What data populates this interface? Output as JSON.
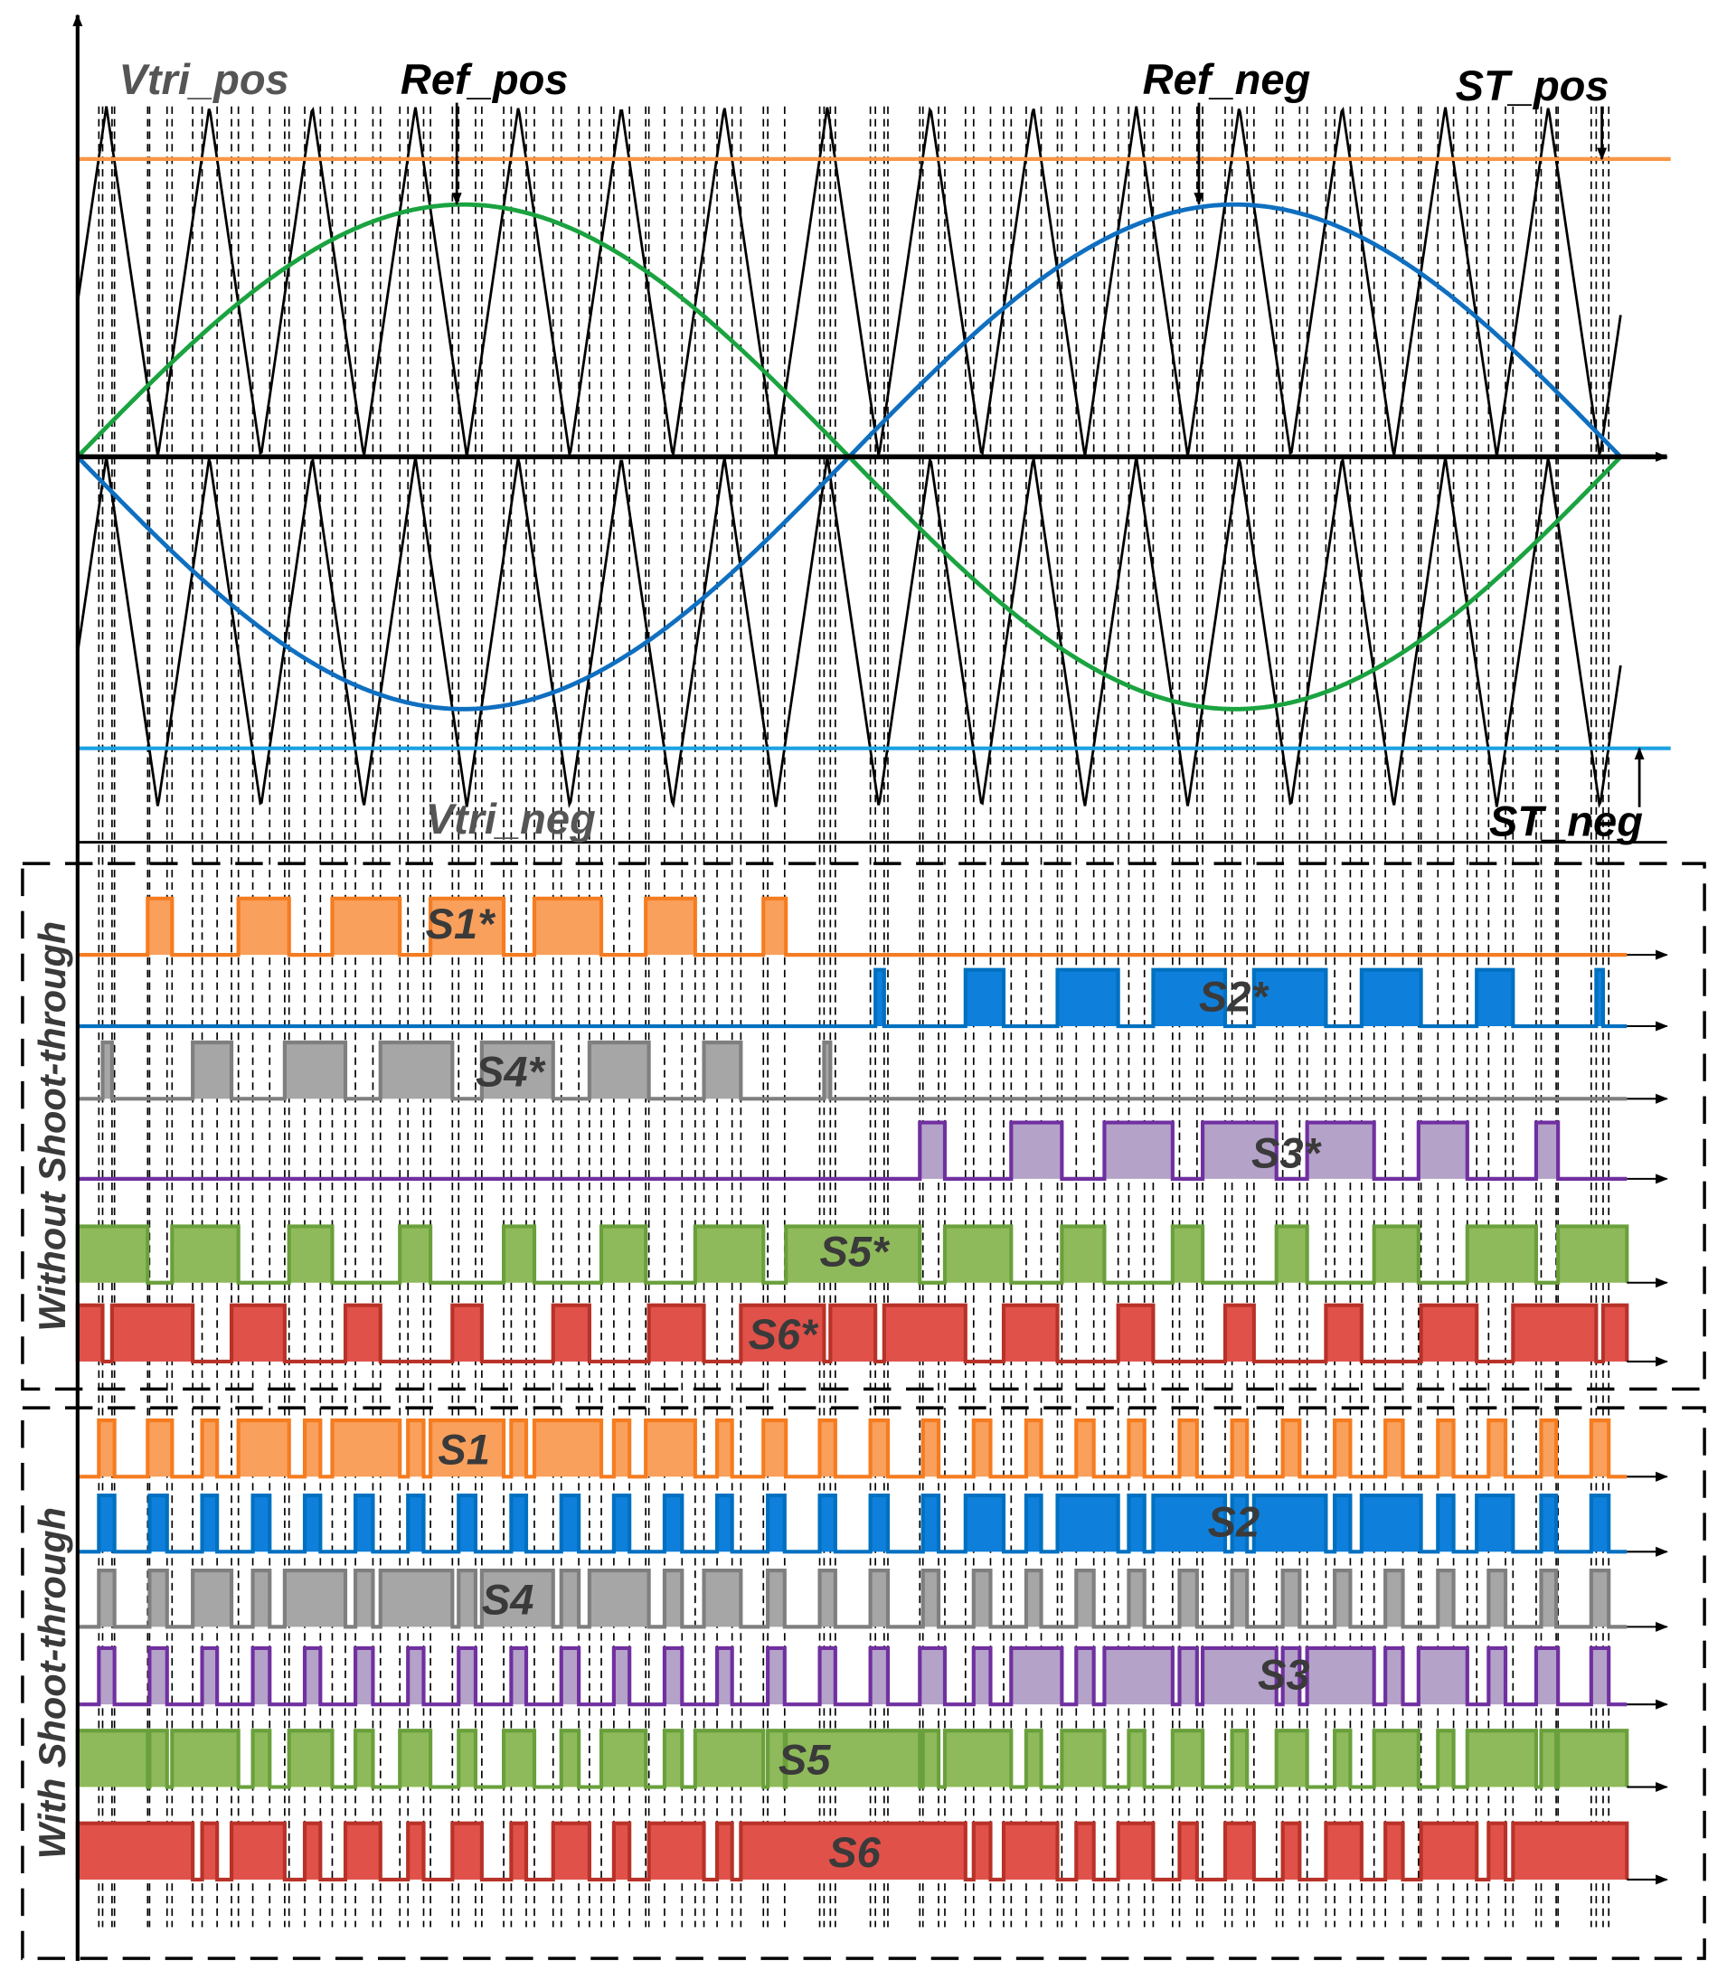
{
  "labels": {
    "vtri_pos": "Vtri_pos",
    "ref_pos": "Ref_pos",
    "ref_neg": "Ref_neg",
    "st_pos": "ST_pos",
    "vtri_neg": "Vtri_neg",
    "st_neg": "ST_neg"
  },
  "groups": {
    "without": "Without Shoot-through",
    "with": "With Shoot-through"
  },
  "signals_without": [
    "S1*",
    "S2*",
    "S4*",
    "S3*",
    "S5*",
    "S6*"
  ],
  "signals_with": [
    "S1",
    "S2",
    "S4",
    "S3",
    "S5",
    "S6"
  ]
}
